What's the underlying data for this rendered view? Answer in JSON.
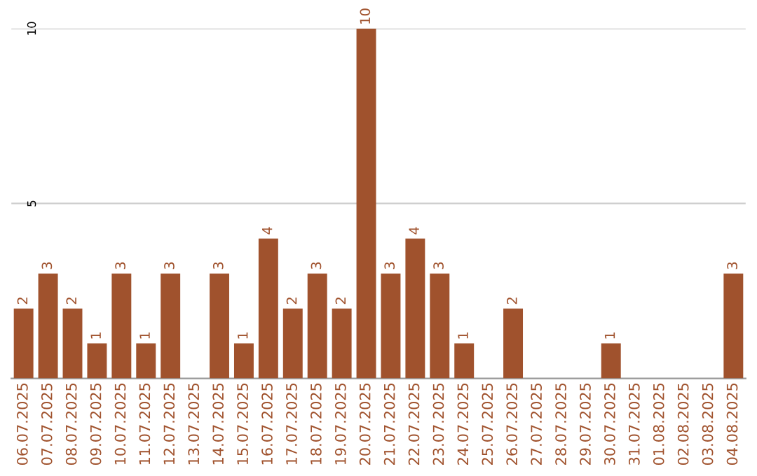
{
  "chart_data": {
    "type": "bar",
    "categories": [
      "06.07.2025",
      "07.07.2025",
      "08.07.2025",
      "09.07.2025",
      "10.07.2025",
      "11.07.2025",
      "12.07.2025",
      "13.07.2025",
      "14.07.2025",
      "15.07.2025",
      "16.07.2025",
      "17.07.2025",
      "18.07.2025",
      "19.07.2025",
      "20.07.2025",
      "21.07.2025",
      "22.07.2025",
      "23.07.2025",
      "24.07.2025",
      "25.07.2025",
      "26.07.2025",
      "27.07.2025",
      "28.07.2025",
      "29.07.2025",
      "30.07.2025",
      "31.07.2025",
      "01.08.2025",
      "02.08.2025",
      "03.08.2025",
      "04.08.2025"
    ],
    "values": [
      2,
      3,
      2,
      1,
      3,
      1,
      3,
      0,
      3,
      1,
      4,
      2,
      3,
      2,
      10,
      3,
      4,
      3,
      1,
      0,
      2,
      0,
      0,
      0,
      1,
      0,
      0,
      0,
      0,
      3
    ],
    "value_labels": [
      "2",
      "3",
      "2",
      "1",
      "3",
      "1",
      "3",
      null,
      "3",
      "1",
      "4",
      "2",
      "3",
      "2",
      "10",
      "3",
      "4",
      "3",
      "1",
      null,
      "2",
      null,
      null,
      null,
      "1",
      null,
      null,
      null,
      null,
      "3"
    ],
    "color": "#a0522d",
    "ylim": [
      0,
      10
    ],
    "yticks": [
      5,
      10
    ],
    "grid": "y"
  }
}
